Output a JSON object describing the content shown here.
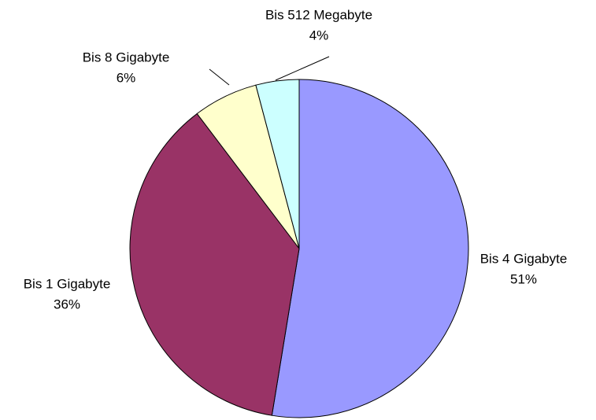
{
  "chart_data": {
    "type": "pie",
    "categories": [
      "Bis 4 Gigabyte",
      "Bis 1 Gigabyte",
      "Bis 8 Gigabyte",
      "Bis 512 Megabyte"
    ],
    "values": [
      51,
      36,
      6,
      4
    ],
    "value_labels": [
      "51%",
      "36%",
      "6%",
      "4%"
    ],
    "colors": [
      "#9999ff",
      "#993366",
      "#ffffcc",
      "#ccffff"
    ]
  }
}
